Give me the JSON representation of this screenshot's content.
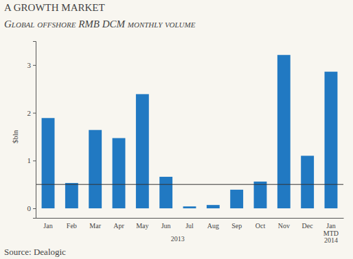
{
  "chart_data": {
    "type": "bar",
    "title": "A GROWTH MARKET",
    "subtitle": "Global offshore RMB DCM monthly volume",
    "y_label": "$bln",
    "categories": [
      "Jan",
      "Feb",
      "Mar",
      "Apr",
      "May",
      "Jun",
      "Jul",
      "Aug",
      "Sep",
      "Oct",
      "Nov",
      "Dec",
      "Jan MTD 2014"
    ],
    "values": [
      1.89,
      0.53,
      1.64,
      1.47,
      2.39,
      0.66,
      0.04,
      0.07,
      0.39,
      0.56,
      3.21,
      1.1,
      2.86
    ],
    "color": "#2179c2",
    "ylim": [
      -0.2,
      3.5
    ],
    "yticks": [
      0,
      1,
      2,
      3
    ],
    "reference_line": 0.5,
    "annotations": [
      "2013"
    ],
    "source": "Source: Dealogic"
  }
}
